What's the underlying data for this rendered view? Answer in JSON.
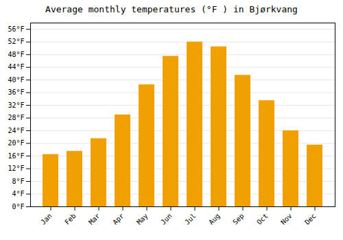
{
  "chart_data": {
    "type": "bar",
    "title": "Average monthly temperatures (°F ) in Bjørkvang",
    "categories": [
      "Jan",
      "Feb",
      "Mar",
      "Apr",
      "May",
      "Jun",
      "Jul",
      "Aug",
      "Sep",
      "Oct",
      "Nov",
      "Dec"
    ],
    "values": [
      16.5,
      17.5,
      21.5,
      29.0,
      38.5,
      47.5,
      52.0,
      50.5,
      41.5,
      33.5,
      24.0,
      19.5
    ],
    "color": "#F0A000",
    "ylim": [
      0,
      58
    ],
    "yticks": [
      {
        "value": 0,
        "label": "0°F"
      },
      {
        "value": 4,
        "label": "4°F"
      },
      {
        "value": 8,
        "label": "8°F"
      },
      {
        "value": 12,
        "label": "12°F"
      },
      {
        "value": 16,
        "label": "16°F"
      },
      {
        "value": 20,
        "label": "20°F"
      },
      {
        "value": 24,
        "label": "24°F"
      },
      {
        "value": 28,
        "label": "28°F"
      },
      {
        "value": 32,
        "label": "32°F"
      },
      {
        "value": 36,
        "label": "36°F"
      },
      {
        "value": 40,
        "label": "40°F"
      },
      {
        "value": 44,
        "label": "44°F"
      },
      {
        "value": 48,
        "label": "48°F"
      },
      {
        "value": 52,
        "label": "52°F"
      },
      {
        "value": 56,
        "label": "56°F"
      }
    ],
    "grid": true
  }
}
